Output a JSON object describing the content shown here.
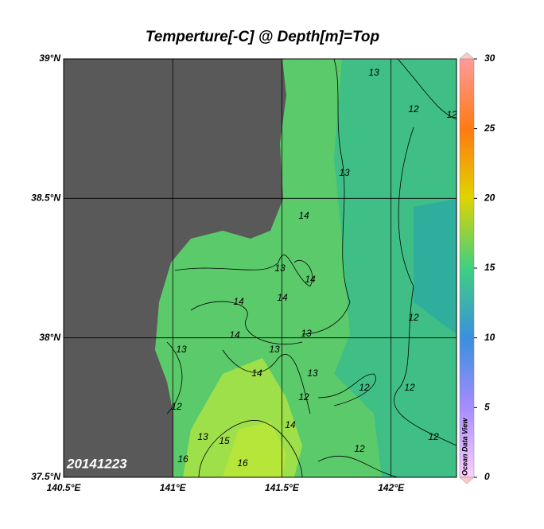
{
  "title": "Temperture[-C] @ Depth[m]=Top",
  "map": {
    "lon_range": [
      140.5,
      142.3
    ],
    "lat_range": [
      37.5,
      39
    ],
    "lon_ticks": [
      {
        "value": 140.5,
        "label": "140.5°E"
      },
      {
        "value": 141,
        "label": "141°E"
      },
      {
        "value": 141.5,
        "label": "141.5°E"
      },
      {
        "value": 142,
        "label": "142°E"
      }
    ],
    "lat_ticks": [
      {
        "value": 37.5,
        "label": "37.5°N"
      },
      {
        "value": 38,
        "label": "38°N"
      },
      {
        "value": 38.5,
        "label": "38.5°N"
      },
      {
        "value": 39,
        "label": "39°N"
      }
    ],
    "contour_labels": [
      13,
      12,
      12,
      13,
      14,
      13,
      14,
      14,
      14,
      12,
      14,
      13,
      13,
      13,
      14,
      13,
      12,
      12,
      12,
      12,
      14,
      13,
      15,
      12,
      12,
      16,
      16
    ]
  },
  "colorbar": {
    "range": [
      0,
      30
    ],
    "ticks": [
      0,
      5,
      10,
      15,
      20,
      25,
      30
    ],
    "label": "Ocean Data View"
  },
  "date_label": "20141223"
}
